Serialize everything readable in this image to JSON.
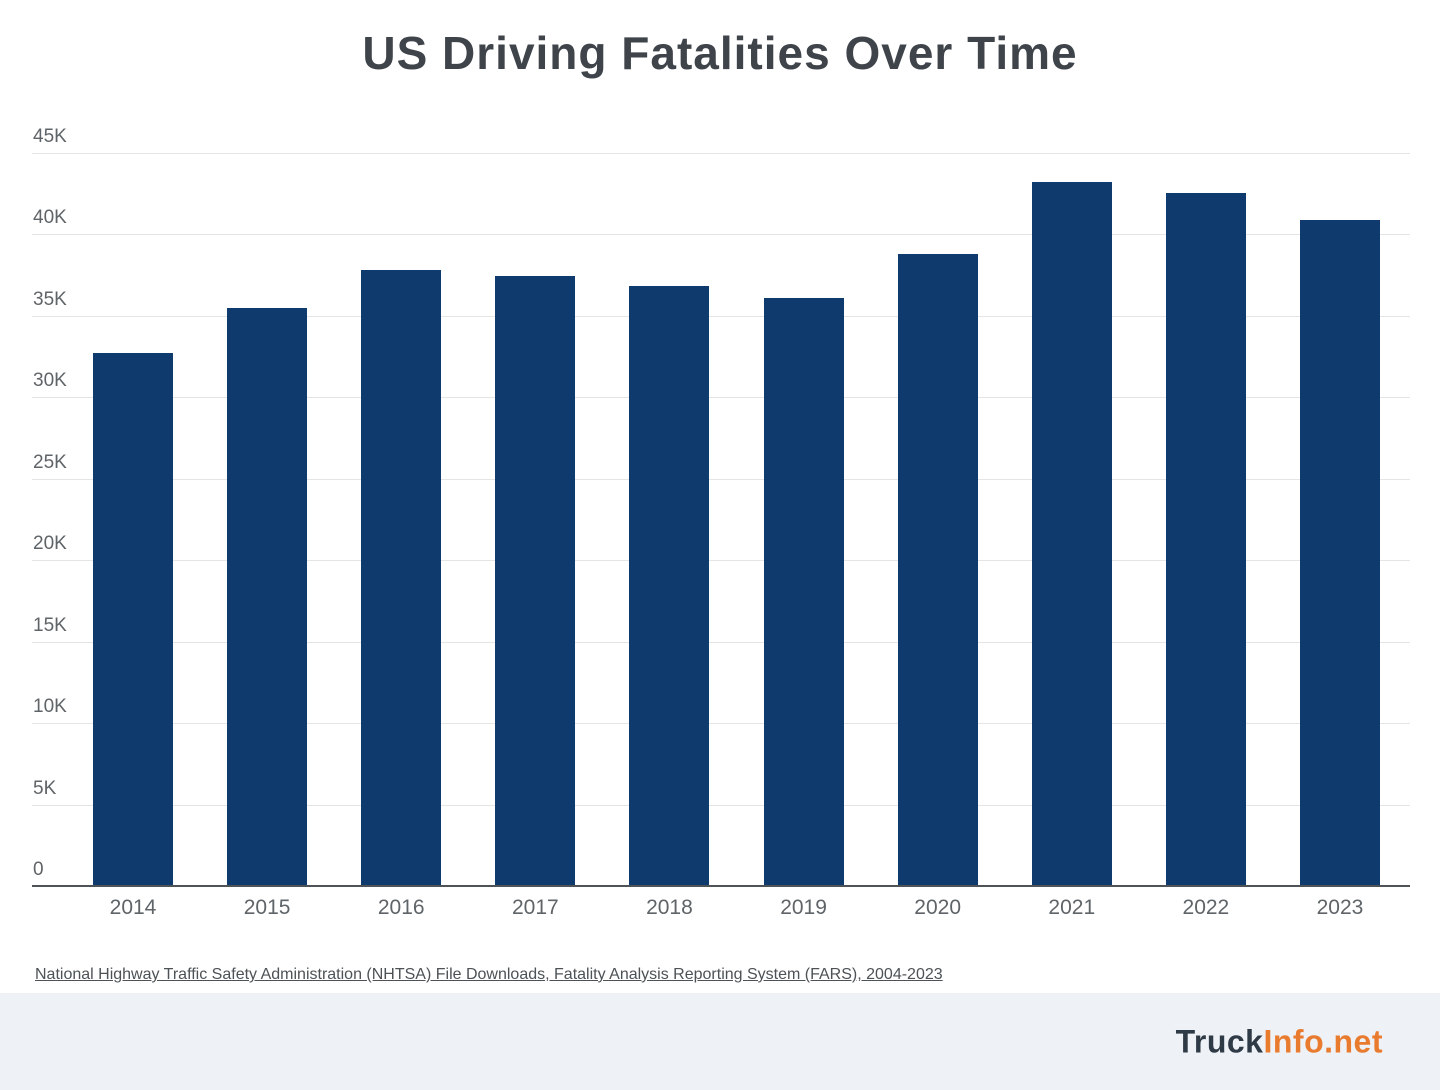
{
  "title": "US Driving Fatalities Over Time",
  "source_note": "National Highway Traffic Safety Administration (NHTSA) File Downloads, Fatality Analysis Reporting System (FARS), 2004-2023",
  "footer": {
    "brand_dark": "Truck",
    "brand_accent": "Info.net"
  },
  "colors": {
    "bar": "#0e3a6e",
    "title_text": "#3f444b",
    "tick_text": "#5f6468",
    "gridline": "#e4e5e7",
    "axis_line": "#4e5357",
    "source_text": "#4d5256",
    "footer_background": "#eef1f5",
    "brand_dark": "#2f3a47",
    "brand_accent": "#e97b2f"
  },
  "chart_data": {
    "type": "bar",
    "title": "US Driving Fatalities Over Time",
    "categories": [
      "2014",
      "2015",
      "2016",
      "2017",
      "2018",
      "2019",
      "2020",
      "2021",
      "2022",
      "2023"
    ],
    "values": [
      32744,
      35484,
      37806,
      37473,
      36835,
      36096,
      38824,
      43230,
      42514,
      40901
    ],
    "xlabel": "",
    "ylabel": "",
    "ylim": [
      0,
      45000
    ],
    "ytick_step": 5000,
    "ytick_labels": [
      "0",
      "5K",
      "10K",
      "15K",
      "20K",
      "25K",
      "30K",
      "35K",
      "40K",
      "45K"
    ],
    "grid": true,
    "legend": false,
    "bar_color": "#0e3a6e"
  }
}
